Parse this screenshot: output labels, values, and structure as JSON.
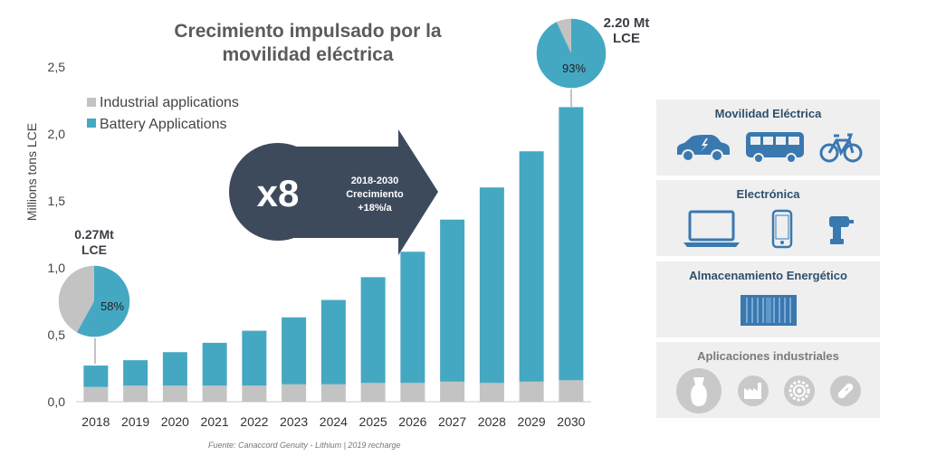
{
  "title": "Crecimiento impulsado por la movilidad eléctrica",
  "source": "Fuente: Canaccord Genuity - Lithium | 2019 recharge",
  "chart_data": {
    "type": "bar",
    "stacked": true,
    "categories": [
      "2018",
      "2019",
      "2020",
      "2021",
      "2022",
      "2023",
      "2024",
      "2025",
      "2026",
      "2027",
      "2028",
      "2029",
      "2030"
    ],
    "series": [
      {
        "name": "Industrial applications",
        "color": "#c3c3c3",
        "values": [
          0.11,
          0.12,
          0.12,
          0.12,
          0.12,
          0.13,
          0.13,
          0.14,
          0.14,
          0.15,
          0.14,
          0.15,
          0.16
        ]
      },
      {
        "name": "Battery Applications",
        "color": "#45a8c2",
        "values": [
          0.16,
          0.19,
          0.25,
          0.32,
          0.41,
          0.5,
          0.63,
          0.79,
          0.98,
          1.21,
          1.46,
          1.72,
          2.04
        ]
      }
    ],
    "ylabel": "Millions tons LCE",
    "ylim": [
      0,
      2.5
    ],
    "yticks": [
      "0,0",
      "0,5",
      "1,0",
      "1,5",
      "2,0",
      "2,5"
    ],
    "legend": [
      "Industrial applications",
      "Battery Applications"
    ],
    "legend_position": "top-left",
    "annotations": {
      "arrow_multiplier": "x8",
      "arrow_text": [
        "2018-2030",
        "Crecimiento",
        "+18%/a"
      ],
      "pie_2018": {
        "label_lines": [
          "0.27Mt",
          "LCE"
        ],
        "battery_share": 58,
        "pct_text": "58%"
      },
      "pie_2030": {
        "label_lines": [
          "2.20 Mt",
          "LCE"
        ],
        "battery_share": 93,
        "pct_text": "93%"
      }
    }
  },
  "panels": [
    {
      "title": "Movilidad Eléctrica",
      "icons": [
        "electric-car-icon",
        "bus-icon",
        "bicycle-icon"
      ]
    },
    {
      "title": "Electrónica",
      "icons": [
        "laptop-icon",
        "smartphone-icon",
        "power-drill-icon"
      ]
    },
    {
      "title": "Almacenamiento Energético",
      "icons": [
        "battery-container-icon"
      ]
    },
    {
      "title": "Aplicaciones industriales",
      "icons": [
        "glass-vase-icon",
        "factory-icon",
        "gear-icon",
        "pill-icon"
      ]
    }
  ],
  "colors": {
    "battery": "#45a8c2",
    "industrial": "#c3c3c3",
    "arrow": "#3d4a5c",
    "panel_title": "#2f4f6b",
    "icon": "#3a78b0"
  }
}
